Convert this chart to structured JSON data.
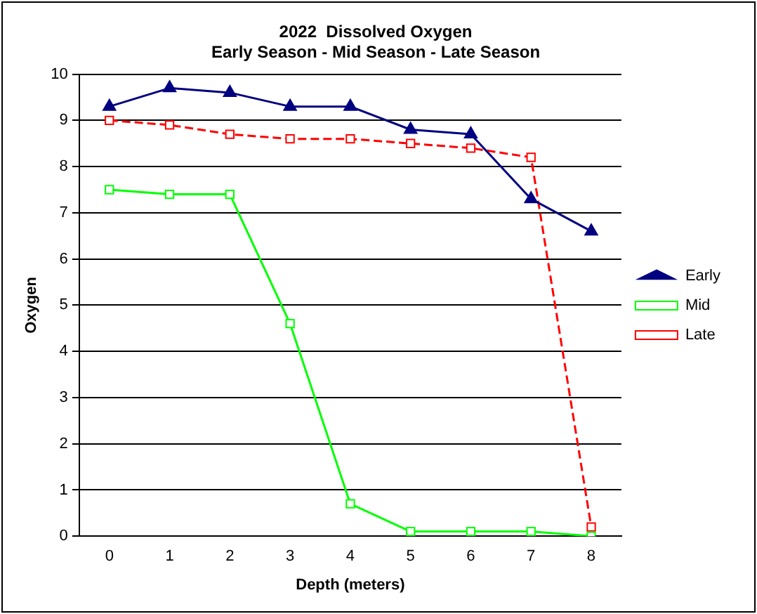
{
  "chart_data": {
    "type": "line",
    "title": "2022  Dissolved Oxygen\nEarly Season - Mid Season - Late Season",
    "xlabel": "Depth (meters)",
    "ylabel": "Oxygen",
    "categories": [
      "0",
      "1",
      "2",
      "3",
      "4",
      "5",
      "6",
      "7",
      "8"
    ],
    "series": [
      {
        "name": "Early",
        "color": "#000080",
        "marker": "triangle",
        "line_style": "solid",
        "values": [
          9.3,
          9.7,
          9.6,
          9.3,
          9.3,
          8.8,
          8.7,
          7.3,
          6.6
        ]
      },
      {
        "name": "Mid",
        "color": "#00ff00",
        "marker": "square",
        "line_style": "solid",
        "values": [
          7.5,
          7.4,
          7.4,
          4.6,
          0.7,
          0.1,
          0.1,
          0.1,
          0
        ]
      },
      {
        "name": "Late",
        "color": "#ff0000",
        "marker": "square",
        "line_style": "dashed",
        "values": [
          9,
          8.9,
          8.7,
          8.6,
          8.6,
          8.5,
          8.4,
          8.2,
          0.2
        ]
      }
    ],
    "ylim": [
      0,
      10
    ],
    "yticks": [
      0,
      1,
      2,
      3,
      4,
      5,
      6,
      7,
      8,
      9,
      10
    ],
    "grid": "y",
    "legend": "right"
  }
}
